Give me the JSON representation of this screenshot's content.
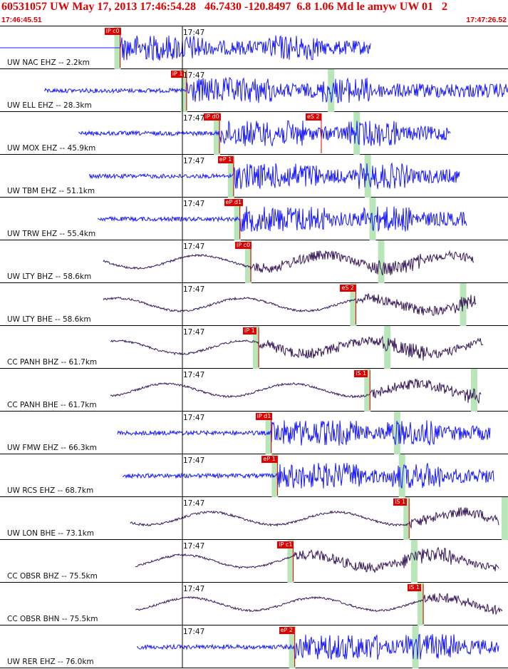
{
  "header": {
    "title": "60531057 UW May 17, 2013 17:46:54.28   46.7430 -120.8497  6.8 1.06 Md le amyw UW 01   2",
    "start_time": "17:46:45.51",
    "end_time": "17:47:26.52"
  },
  "time_mark": "17:47",
  "colors": {
    "header_text": "#e00000",
    "trace_blue": "#1a1aff",
    "trace_purple": "#3a1a5a",
    "pick_red": "#e00000",
    "window_green": "#b8e6b8"
  },
  "traces": [
    {
      "label": "UW NAC EHZ -- 2.2km",
      "color": "blue",
      "picks": [
        {
          "text": "iP c0",
          "time": 0.383
        }
      ],
      "s_pick": null
    },
    {
      "label": "UW ELL EHZ -- 28.3km",
      "color": "blue",
      "picks": [
        {
          "text": "iP 1",
          "time": 0.595
        }
      ],
      "s_pick": null
    },
    {
      "label": "UW MOX EHZ -- 45.9km",
      "color": "blue",
      "picks": [
        {
          "text": "iP d0",
          "time": 0.7
        },
        {
          "text": "eS 2",
          "time": 1.025
        }
      ],
      "s_pick": null
    },
    {
      "label": "UW TBM EHZ -- 51.1km",
      "color": "blue",
      "picks": [
        {
          "text": "eP 1",
          "time": 0.745
        }
      ],
      "s_pick": null
    },
    {
      "label": "UW TRW EHZ -- 55.4km",
      "color": "blue",
      "picks": [
        {
          "text": "eP d1",
          "time": 0.765
        }
      ],
      "s_pick": null
    },
    {
      "label": "UW LTY BHZ -- 58.6km",
      "color": "purple",
      "picks": [
        {
          "text": "iP c0",
          "time": 0.8
        }
      ],
      "s_pick": null
    },
    {
      "label": "UW LTY BHE -- 58.6km",
      "color": "purple",
      "picks": [
        {
          "text": "eS 2",
          "time": 1.135
        }
      ],
      "s_pick": null
    },
    {
      "label": "CC PANH BHZ -- 61.7km",
      "color": "purple",
      "picks": [
        {
          "text": "iP 1",
          "time": 0.825
        }
      ],
      "s_pick": null
    },
    {
      "label": "CC PANH BHE -- 61.7km",
      "color": "purple",
      "picks": [
        {
          "text": "iS 1",
          "time": 1.18
        }
      ],
      "s_pick": null
    },
    {
      "label": "UW FMW EHZ -- 66.3km",
      "color": "blue",
      "picks": [
        {
          "text": "iP d1",
          "time": 0.865
        }
      ],
      "s_pick": null
    },
    {
      "label": "UW RCS EHZ -- 68.7km",
      "color": "blue",
      "picks": [
        {
          "text": "eP 1",
          "time": 0.885
        }
      ],
      "s_pick": null
    },
    {
      "label": "UW LON BHE -- 73.1km",
      "color": "purple",
      "picks": [
        {
          "text": "iS 1",
          "time": 1.305
        }
      ],
      "s_pick": null
    },
    {
      "label": "CC OBSR BHZ -- 75.5km",
      "color": "purple",
      "picks": [
        {
          "text": "iP c1",
          "time": 0.935
        }
      ],
      "s_pick": null
    },
    {
      "label": "CC OBSR BHN -- 75.5km",
      "color": "purple",
      "picks": [
        {
          "text": "iS 1",
          "time": 1.35
        }
      ],
      "s_pick": null
    },
    {
      "label": "UW RER EHZ -- 76.0km",
      "color": "blue",
      "picks": [
        {
          "text": "eP 2",
          "time": 0.94
        }
      ],
      "s_pick": null
    }
  ]
}
